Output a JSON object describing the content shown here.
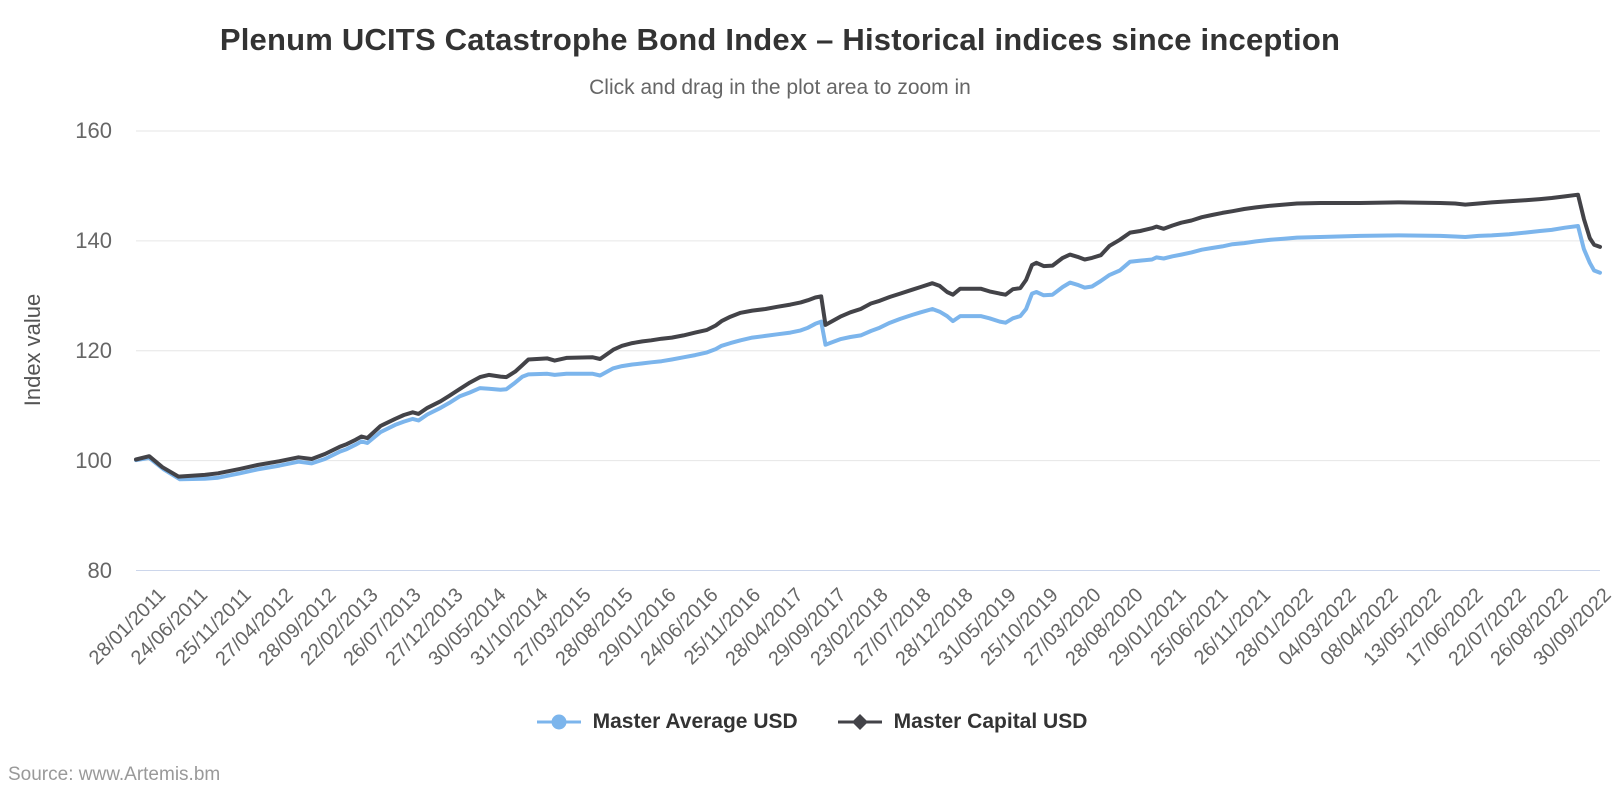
{
  "chart_data": {
    "type": "line",
    "title": "Plenum UCITS Catastrophe Bond Index – Historical indices since inception",
    "subtitle": "Click and drag in the plot area to zoom in",
    "ylabel": "Index value",
    "ylim": [
      80,
      160
    ],
    "y_ticks": [
      80,
      100,
      120,
      140,
      160
    ],
    "grid": "horizontal-only",
    "legend_position": "bottom-center",
    "x_tick_labels": [
      "28/01/2011",
      "24/06/2011",
      "25/11/2011",
      "27/04/2012",
      "28/09/2012",
      "22/02/2013",
      "26/07/2013",
      "27/12/2013",
      "30/05/2014",
      "31/10/2014",
      "27/03/2015",
      "28/08/2015",
      "29/01/2016",
      "24/06/2016",
      "25/11/2016",
      "28/04/2017",
      "29/09/2017",
      "23/02/2018",
      "27/07/2018",
      "28/12/2018",
      "31/05/2019",
      "25/10/2019",
      "27/03/2020",
      "28/08/2020",
      "29/01/2021",
      "25/06/2021",
      "26/11/2021",
      "28/01/2022",
      "04/03/2022",
      "08/04/2022",
      "13/05/2022",
      "17/06/2022",
      "22/07/2022",
      "26/08/2022",
      "30/09/2022"
    ],
    "series": [
      {
        "name": "Master Average USD",
        "color": "#7cb5ec",
        "marker": "circle",
        "points": [
          [
            0.0,
            100.1
          ],
          [
            0.009,
            100.5
          ],
          [
            0.019,
            98.4
          ],
          [
            0.03,
            96.6
          ],
          [
            0.047,
            96.7
          ],
          [
            0.056,
            96.9
          ],
          [
            0.071,
            97.7
          ],
          [
            0.083,
            98.4
          ],
          [
            0.098,
            99.1
          ],
          [
            0.111,
            99.8
          ],
          [
            0.12,
            99.5
          ],
          [
            0.129,
            100.3
          ],
          [
            0.139,
            101.6
          ],
          [
            0.144,
            102.1
          ],
          [
            0.15,
            102.9
          ],
          [
            0.154,
            103.5
          ],
          [
            0.158,
            103.2
          ],
          [
            0.167,
            105.2
          ],
          [
            0.177,
            106.5
          ],
          [
            0.183,
            107.1
          ],
          [
            0.189,
            107.6
          ],
          [
            0.193,
            107.3
          ],
          [
            0.199,
            108.4
          ],
          [
            0.208,
            109.6
          ],
          [
            0.214,
            110.5
          ],
          [
            0.221,
            111.7
          ],
          [
            0.228,
            112.4
          ],
          [
            0.235,
            113.2
          ],
          [
            0.241,
            113.1
          ],
          [
            0.249,
            112.9
          ],
          [
            0.253,
            113.0
          ],
          [
            0.259,
            114.2
          ],
          [
            0.264,
            115.3
          ],
          [
            0.268,
            115.7
          ],
          [
            0.281,
            115.8
          ],
          [
            0.286,
            115.6
          ],
          [
            0.294,
            115.8
          ],
          [
            0.312,
            115.8
          ],
          [
            0.317,
            115.5
          ],
          [
            0.326,
            116.8
          ],
          [
            0.332,
            117.2
          ],
          [
            0.339,
            117.5
          ],
          [
            0.346,
            117.7
          ],
          [
            0.352,
            117.9
          ],
          [
            0.359,
            118.1
          ],
          [
            0.366,
            118.4
          ],
          [
            0.374,
            118.8
          ],
          [
            0.382,
            119.2
          ],
          [
            0.39,
            119.7
          ],
          [
            0.396,
            120.3
          ],
          [
            0.4,
            120.9
          ],
          [
            0.406,
            121.4
          ],
          [
            0.413,
            121.9
          ],
          [
            0.421,
            122.4
          ],
          [
            0.43,
            122.7
          ],
          [
            0.438,
            123.0
          ],
          [
            0.447,
            123.3
          ],
          [
            0.454,
            123.7
          ],
          [
            0.459,
            124.2
          ],
          [
            0.464,
            124.9
          ],
          [
            0.468,
            125.3
          ],
          [
            0.471,
            121.1
          ],
          [
            0.475,
            121.5
          ],
          [
            0.481,
            122.1
          ],
          [
            0.488,
            122.5
          ],
          [
            0.495,
            122.8
          ],
          [
            0.502,
            123.6
          ],
          [
            0.508,
            124.2
          ],
          [
            0.515,
            125.1
          ],
          [
            0.522,
            125.8
          ],
          [
            0.53,
            126.5
          ],
          [
            0.536,
            127.0
          ],
          [
            0.544,
            127.6
          ],
          [
            0.549,
            127.1
          ],
          [
            0.554,
            126.3
          ],
          [
            0.558,
            125.4
          ],
          [
            0.563,
            126.3
          ],
          [
            0.577,
            126.3
          ],
          [
            0.583,
            125.9
          ],
          [
            0.59,
            125.3
          ],
          [
            0.594,
            125.1
          ],
          [
            0.599,
            125.9
          ],
          [
            0.604,
            126.3
          ],
          [
            0.608,
            127.6
          ],
          [
            0.612,
            130.4
          ],
          [
            0.615,
            130.7
          ],
          [
            0.62,
            130.1
          ],
          [
            0.626,
            130.2
          ],
          [
            0.633,
            131.6
          ],
          [
            0.638,
            132.4
          ],
          [
            0.643,
            132.0
          ],
          [
            0.648,
            131.5
          ],
          [
            0.653,
            131.7
          ],
          [
            0.659,
            132.7
          ],
          [
            0.665,
            133.8
          ],
          [
            0.672,
            134.6
          ],
          [
            0.679,
            136.2
          ],
          [
            0.686,
            136.4
          ],
          [
            0.694,
            136.6
          ],
          [
            0.697,
            137.0
          ],
          [
            0.702,
            136.8
          ],
          [
            0.708,
            137.2
          ],
          [
            0.714,
            137.5
          ],
          [
            0.721,
            137.9
          ],
          [
            0.728,
            138.4
          ],
          [
            0.735,
            138.7
          ],
          [
            0.742,
            139.0
          ],
          [
            0.749,
            139.4
          ],
          [
            0.757,
            139.6
          ],
          [
            0.765,
            139.9
          ],
          [
            0.775,
            140.2
          ],
          [
            0.784,
            140.4
          ],
          [
            0.793,
            140.6
          ],
          [
            0.809,
            140.7
          ],
          [
            0.836,
            140.9
          ],
          [
            0.863,
            141.0
          ],
          [
            0.891,
            140.9
          ],
          [
            0.901,
            140.8
          ],
          [
            0.908,
            140.7
          ],
          [
            0.917,
            140.9
          ],
          [
            0.926,
            141.0
          ],
          [
            0.938,
            141.2
          ],
          [
            0.949,
            141.5
          ],
          [
            0.959,
            141.8
          ],
          [
            0.967,
            142.0
          ],
          [
            0.976,
            142.4
          ],
          [
            0.985,
            142.7
          ],
          [
            0.989,
            138.5
          ],
          [
            0.993,
            136.0
          ],
          [
            0.996,
            134.6
          ],
          [
            1.0,
            134.2
          ]
        ]
      },
      {
        "name": "Master Capital USD",
        "color": "#434348",
        "marker": "diamond",
        "points": [
          [
            0.0,
            100.2
          ],
          [
            0.009,
            100.8
          ],
          [
            0.018,
            98.8
          ],
          [
            0.029,
            97.1
          ],
          [
            0.047,
            97.4
          ],
          [
            0.056,
            97.7
          ],
          [
            0.071,
            98.5
          ],
          [
            0.083,
            99.2
          ],
          [
            0.098,
            99.9
          ],
          [
            0.111,
            100.6
          ],
          [
            0.12,
            100.3
          ],
          [
            0.129,
            101.2
          ],
          [
            0.139,
            102.5
          ],
          [
            0.144,
            103.0
          ],
          [
            0.15,
            103.8
          ],
          [
            0.154,
            104.4
          ],
          [
            0.158,
            104.1
          ],
          [
            0.167,
            106.3
          ],
          [
            0.177,
            107.6
          ],
          [
            0.183,
            108.3
          ],
          [
            0.189,
            108.8
          ],
          [
            0.193,
            108.5
          ],
          [
            0.199,
            109.6
          ],
          [
            0.208,
            110.8
          ],
          [
            0.214,
            111.8
          ],
          [
            0.221,
            113.0
          ],
          [
            0.228,
            114.2
          ],
          [
            0.235,
            115.2
          ],
          [
            0.241,
            115.6
          ],
          [
            0.249,
            115.3
          ],
          [
            0.253,
            115.2
          ],
          [
            0.259,
            116.2
          ],
          [
            0.264,
            117.4
          ],
          [
            0.268,
            118.4
          ],
          [
            0.281,
            118.6
          ],
          [
            0.286,
            118.2
          ],
          [
            0.294,
            118.7
          ],
          [
            0.312,
            118.8
          ],
          [
            0.317,
            118.5
          ],
          [
            0.326,
            120.2
          ],
          [
            0.332,
            120.9
          ],
          [
            0.339,
            121.4
          ],
          [
            0.346,
            121.7
          ],
          [
            0.352,
            121.9
          ],
          [
            0.359,
            122.2
          ],
          [
            0.366,
            122.4
          ],
          [
            0.374,
            122.8
          ],
          [
            0.382,
            123.3
          ],
          [
            0.39,
            123.8
          ],
          [
            0.396,
            124.6
          ],
          [
            0.4,
            125.4
          ],
          [
            0.406,
            126.2
          ],
          [
            0.413,
            126.9
          ],
          [
            0.421,
            127.3
          ],
          [
            0.43,
            127.6
          ],
          [
            0.438,
            128.0
          ],
          [
            0.447,
            128.4
          ],
          [
            0.454,
            128.8
          ],
          [
            0.459,
            129.2
          ],
          [
            0.464,
            129.7
          ],
          [
            0.468,
            129.9
          ],
          [
            0.471,
            124.7
          ],
          [
            0.475,
            125.3
          ],
          [
            0.481,
            126.2
          ],
          [
            0.488,
            127.0
          ],
          [
            0.495,
            127.6
          ],
          [
            0.502,
            128.6
          ],
          [
            0.508,
            129.1
          ],
          [
            0.515,
            129.8
          ],
          [
            0.522,
            130.4
          ],
          [
            0.53,
            131.1
          ],
          [
            0.536,
            131.6
          ],
          [
            0.544,
            132.3
          ],
          [
            0.549,
            131.8
          ],
          [
            0.554,
            130.7
          ],
          [
            0.558,
            130.2
          ],
          [
            0.563,
            131.3
          ],
          [
            0.577,
            131.3
          ],
          [
            0.583,
            130.8
          ],
          [
            0.59,
            130.4
          ],
          [
            0.594,
            130.2
          ],
          [
            0.599,
            131.2
          ],
          [
            0.604,
            131.4
          ],
          [
            0.608,
            132.9
          ],
          [
            0.612,
            135.6
          ],
          [
            0.615,
            136.0
          ],
          [
            0.62,
            135.4
          ],
          [
            0.626,
            135.5
          ],
          [
            0.633,
            136.9
          ],
          [
            0.638,
            137.5
          ],
          [
            0.643,
            137.1
          ],
          [
            0.648,
            136.6
          ],
          [
            0.653,
            136.9
          ],
          [
            0.659,
            137.4
          ],
          [
            0.665,
            139.1
          ],
          [
            0.672,
            140.2
          ],
          [
            0.679,
            141.5
          ],
          [
            0.686,
            141.8
          ],
          [
            0.694,
            142.3
          ],
          [
            0.697,
            142.6
          ],
          [
            0.702,
            142.2
          ],
          [
            0.708,
            142.8
          ],
          [
            0.714,
            143.3
          ],
          [
            0.721,
            143.7
          ],
          [
            0.728,
            144.3
          ],
          [
            0.735,
            144.7
          ],
          [
            0.742,
            145.1
          ],
          [
            0.749,
            145.4
          ],
          [
            0.757,
            145.8
          ],
          [
            0.765,
            146.1
          ],
          [
            0.775,
            146.4
          ],
          [
            0.784,
            146.6
          ],
          [
            0.793,
            146.8
          ],
          [
            0.809,
            146.9
          ],
          [
            0.836,
            146.9
          ],
          [
            0.863,
            147.0
          ],
          [
            0.891,
            146.9
          ],
          [
            0.901,
            146.8
          ],
          [
            0.908,
            146.6
          ],
          [
            0.917,
            146.8
          ],
          [
            0.926,
            147.0
          ],
          [
            0.938,
            147.2
          ],
          [
            0.949,
            147.4
          ],
          [
            0.959,
            147.6
          ],
          [
            0.967,
            147.8
          ],
          [
            0.976,
            148.1
          ],
          [
            0.985,
            148.4
          ],
          [
            0.989,
            144.0
          ],
          [
            0.993,
            140.5
          ],
          [
            0.996,
            139.3
          ],
          [
            1.0,
            138.9
          ]
        ]
      }
    ]
  },
  "source": {
    "label": "Source: www.Artemis.bm"
  },
  "colors": {
    "grid": "#e6e6e6",
    "axis_line": "#ccd6eb",
    "tick_label": "#666666",
    "title": "#333333",
    "subtitle": "#666666",
    "legend_text": "#333333",
    "source_text": "#999999",
    "background": "#ffffff"
  }
}
